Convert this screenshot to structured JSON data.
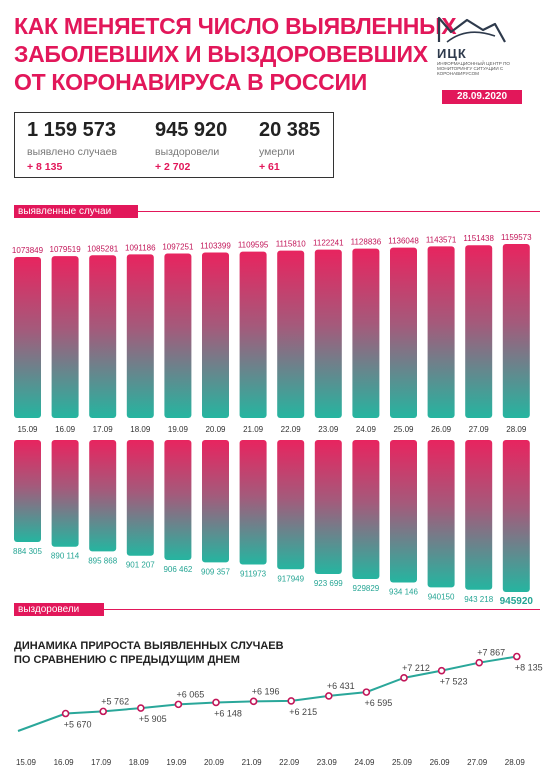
{
  "title_lines": [
    "Как меняется число выявленных",
    "заболевших и выздоровевших",
    "от коронавируса в России"
  ],
  "logo": {
    "abbr": "ИЦК",
    "subtitle": "ИНФОРМАЦИОННЫЙ ЦЕНТР ПО МОНИТОРИНГУ СИТУАЦИИ С КОРОНАВИРУСОМ"
  },
  "date": "28.09.2020",
  "stats": {
    "detected": {
      "value": "1 159 573",
      "label": "выявлено случаев",
      "delta": "+ 8 135"
    },
    "recovered": {
      "value": "945 920",
      "label": "выздоровели",
      "delta": "+ 2 702"
    },
    "died": {
      "value": "20 385",
      "label": "умерли",
      "delta": "+ 61"
    }
  },
  "section_labels": {
    "cases": "выявленные случаи",
    "recovered": "выздоровели"
  },
  "trend_title_lines": [
    "ДИНАМИКА ПРИРОСТА ВЫЯВЛЕННЫХ СЛУЧАЕВ",
    "ПО СРАВНЕНИЮ С ПРЕДЫДУЩИМ ДНЕМ"
  ],
  "colors": {
    "accent": "#e2175a",
    "bar_top": "#e8245f",
    "bar_bottom": "#25b5a0",
    "line_teal": "#2aa79a",
    "point": "#c21659"
  },
  "chart_data": [
    {
      "type": "bar",
      "categories": [
        "15.09",
        "16.09",
        "17.09",
        "18.09",
        "19.09",
        "20.09",
        "21.09",
        "22.09",
        "23.09",
        "24.09",
        "25.09",
        "26.09",
        "27.09",
        "28.09"
      ],
      "series": [
        {
          "name": "выявленные случаи",
          "values": [
            1073849,
            1079519,
            1085281,
            1091186,
            1097251,
            1103399,
            1109595,
            1115810,
            1122241,
            1128836,
            1136048,
            1143571,
            1151438,
            1159573
          ]
        }
      ],
      "value_labels": [
        "1073849",
        "1079519",
        "1085281",
        "1091186",
        "1097251",
        "1103399",
        "1109595",
        "1115810",
        "1122241",
        "1128836",
        "1136048",
        "1143571",
        "1151438",
        "1159573"
      ]
    },
    {
      "type": "bar",
      "categories": [
        "15.09",
        "16.09",
        "17.09",
        "18.09",
        "19.09",
        "20.09",
        "21.09",
        "22.09",
        "23.09",
        "24.09",
        "25.09",
        "26.09",
        "27.09",
        "28.09"
      ],
      "series": [
        {
          "name": "выздоровели",
          "values": [
            884305,
            890114,
            895868,
            901207,
            906462,
            909357,
            911973,
            917949,
            923699,
            929829,
            934146,
            940150,
            943218,
            945920
          ]
        }
      ],
      "value_labels": [
        "884 305",
        "890 114",
        "895 868",
        "901 207",
        "906 462",
        "909 357",
        "911973",
        "917949",
        "923 699",
        "929829",
        "934 146",
        "940150",
        "943 218",
        "945920"
      ]
    },
    {
      "type": "line",
      "title": "ДИНАМИКА ПРИРОСТА ВЫЯВЛЕННЫХ СЛУЧАЕВ ПО СРАВНЕНИЮ С ПРЕДЫДУЩИМ ДНЕМ",
      "x": [
        "15.09",
        "16.09",
        "17.09",
        "18.09",
        "19.09",
        "20.09",
        "21.09",
        "22.09",
        "23.09",
        "24.09",
        "25.09",
        "26.09",
        "27.09",
        "28.09"
      ],
      "values": [
        null,
        5670,
        5762,
        5905,
        6065,
        6148,
        6196,
        6215,
        6431,
        6595,
        7212,
        7523,
        7867,
        8135
      ],
      "value_labels": [
        "",
        "+5 670",
        "+5 762",
        "+5 905",
        "+6 065",
        "+6 148",
        "+6 196",
        "+6 215",
        "+6 431",
        "+6 595",
        "+7 212",
        "+7 523",
        "+7 867",
        "+8 135"
      ]
    }
  ]
}
